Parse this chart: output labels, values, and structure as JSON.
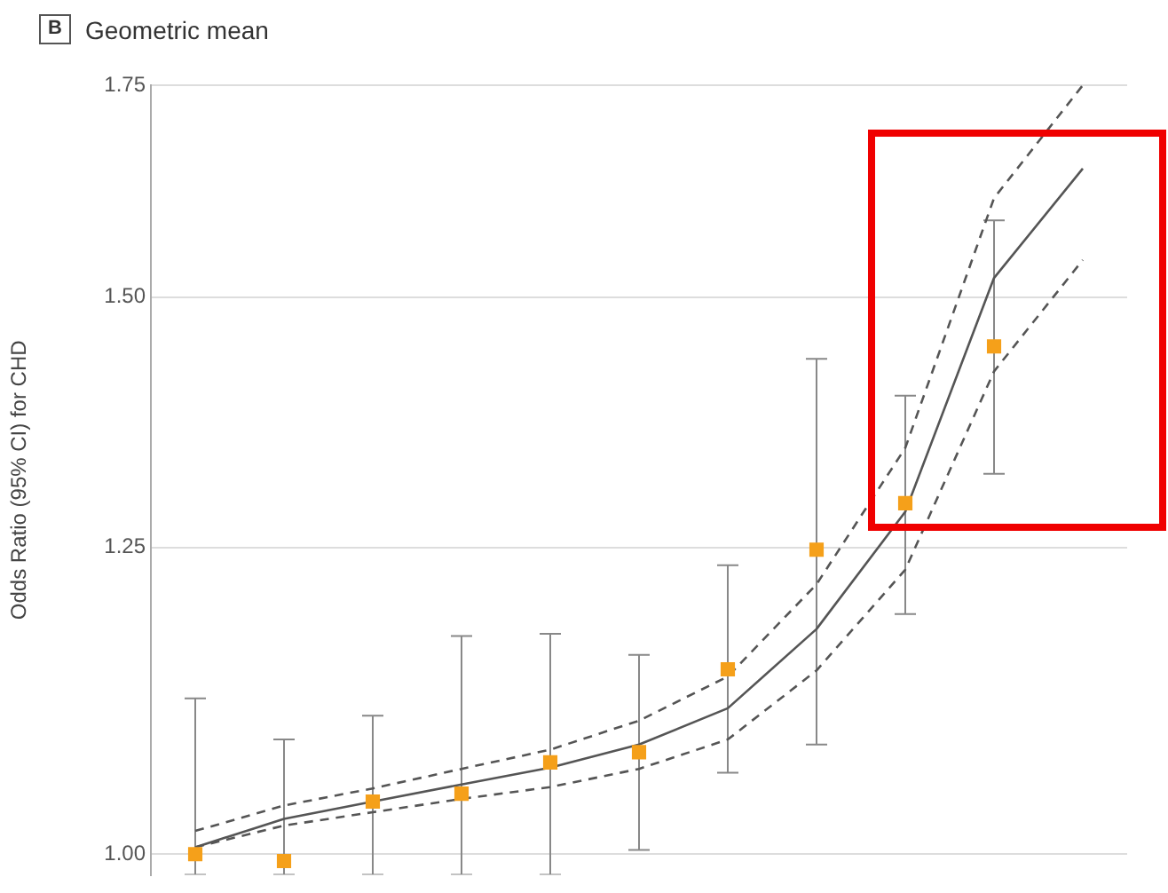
{
  "chart_data": {
    "type": "scatter",
    "title": "Geometric mean",
    "annotations": [
      "B"
    ],
    "ylabel": "Odds Ratio (95% CI) for CHD",
    "categories": [
      null,
      null,
      null,
      null,
      null,
      null,
      null,
      null,
      null,
      null,
      null
    ],
    "ylim": [
      0.985,
      1.75
    ],
    "log": "y",
    "grid": "y",
    "tick_labels": "y",
    "marker": "square",
    "yticks": [
      {
        "value": 1,
        "label": "1.00"
      },
      {
        "value": 1.25,
        "label": "1.25"
      },
      {
        "value": 1.5,
        "label": "1.50"
      },
      {
        "value": 1.75,
        "label": "1.75"
      }
    ],
    "series": [
      {
        "type": "line",
        "color": "#555555",
        "line_style": "solid",
        "marker": "none",
        "values": [
          1.005,
          1.026,
          1.039,
          1.052,
          1.065,
          1.083,
          1.112,
          1.178,
          1.283,
          1.521,
          1.647
        ]
      },
      {
        "type": "line",
        "color": "#555555",
        "line_style": "dashed",
        "marker": "none",
        "values": [
          1.017,
          1.036,
          1.049,
          1.064,
          1.079,
          1.102,
          1.138,
          1.217,
          1.344,
          1.612,
          1.75
        ]
      },
      {
        "type": "line",
        "color": "#555555",
        "line_style": "dashed",
        "marker": "none",
        "values": [
          1.005,
          1.021,
          1.031,
          1.041,
          1.05,
          1.064,
          1.087,
          1.143,
          1.23,
          1.421,
          1.541
        ]
      },
      {
        "color": "#f5a01a",
        "values": [
          1.0,
          0.995,
          1.039,
          1.045,
          1.069,
          1.077,
          1.144,
          1.248,
          1.291,
          1.447,
          null
        ],
        "errors": [
          [
            0.985,
            1.12
          ],
          [
            0.985,
            1.087
          ],
          [
            0.985,
            1.106
          ],
          [
            0.985,
            1.172
          ],
          [
            0.985,
            1.174
          ],
          [
            1.003,
            1.156
          ],
          [
            1.061,
            1.234
          ],
          [
            1.083,
            1.434
          ],
          [
            1.191,
            1.396
          ],
          [
            1.319,
            1.586
          ],
          null
        ]
      }
    ]
  }
}
